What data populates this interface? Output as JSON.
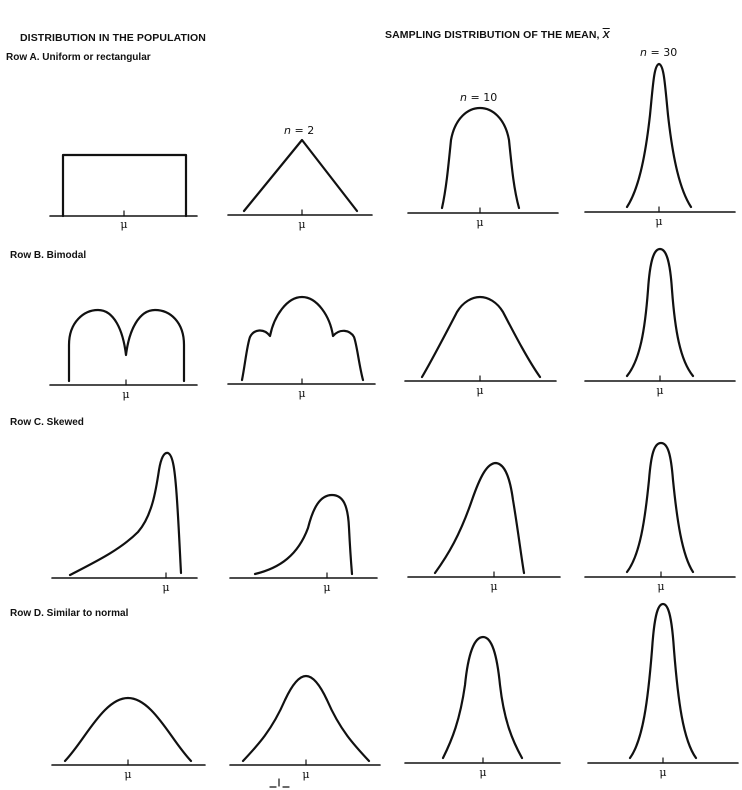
{
  "headers": {
    "population": "DISTRIBUTION IN THE POPULATION",
    "sampling": "SAMPLING DISTRIBUTION OF THE MEAN,",
    "sampling_symbol": "X"
  },
  "rows": [
    {
      "label": "Row A.  Uniform or rectangular"
    },
    {
      "label": "Row B.  Bimodal"
    },
    {
      "label": "Row C.  Skewed"
    },
    {
      "label": "Row D.  Similar to normal"
    }
  ],
  "sample_sizes": [
    {
      "n_label": "n",
      "value_text": "= 2"
    },
    {
      "n_label": "n",
      "value_text": "= 10"
    },
    {
      "n_label": "n",
      "value_text": "= 30"
    }
  ],
  "mu_symbol": "μ"
}
